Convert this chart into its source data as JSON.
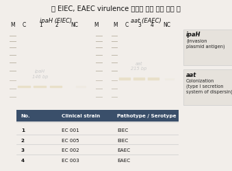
{
  "title": "《 EIEC, EAEC virulence 유전자 존재 유무 확인 》",
  "gel_left_label": "ipaH (EIEC)",
  "gel_right_label": "aat (EAEC)",
  "left_lanes": [
    "M",
    "C",
    "1",
    "2",
    "NC",
    "M"
  ],
  "right_lanes": [
    "M",
    "C",
    "3",
    "4",
    "NC"
  ],
  "left_band_label": "ipaH\n146 bp",
  "right_band_label": "aat\n215 bp",
  "annotation_title1": "ipaH",
  "annotation_desc1": "(invasion\nplasmid antigen)",
  "annotation_title2": "aat",
  "annotation_desc2": "Colonization\n(type I secretion\nsystem of dispersin)",
  "table_headers": [
    "No.",
    "Clinical strain",
    "Pathotype / Serotype"
  ],
  "table_rows": [
    [
      "1",
      "EC 001",
      "EIEC"
    ],
    [
      "2",
      "EC 005",
      "EIEC"
    ],
    [
      "3",
      "EC 002",
      "EAEC"
    ],
    [
      "4",
      "EC 003",
      "EAEC"
    ]
  ],
  "gel_bg": "#060606",
  "band_color": "#e8e0c8",
  "marker_color": "#b8b0a0",
  "table_header_bg": "#3a4f6a",
  "table_header_fg": "#ffffff",
  "bg_color": "#f2eeea",
  "ann_bg": "#e6e2dc",
  "label_box_bg": "#f8f8f8"
}
